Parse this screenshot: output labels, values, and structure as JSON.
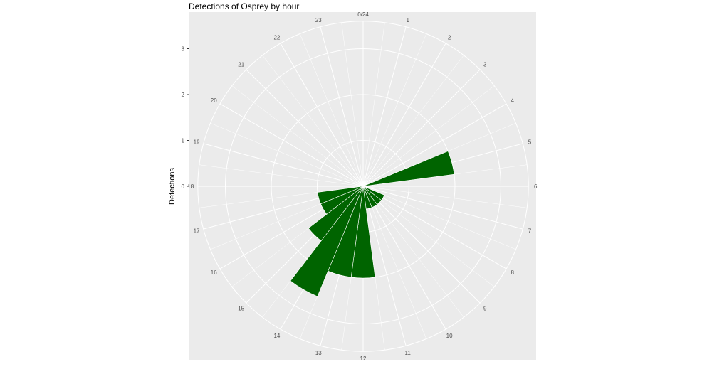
{
  "chart_data": {
    "type": "bar",
    "coord": "polar",
    "title": "Detections of Osprey by hour",
    "xlabel": "",
    "ylabel": "Detections",
    "x_tick_labels": [
      "0/24",
      "1",
      "2",
      "3",
      "4",
      "5",
      "6",
      "7",
      "8",
      "9",
      "10",
      "11",
      "12",
      "13",
      "14",
      "15",
      "16",
      "17",
      "18",
      "19",
      "20",
      "21",
      "22",
      "23"
    ],
    "y_tick_labels": [
      "0",
      "1",
      "2",
      "3"
    ],
    "y_ticks": [
      0,
      1,
      2,
      3
    ],
    "ylim": [
      0,
      3.6
    ],
    "categories": [
      0,
      1,
      2,
      3,
      4,
      5,
      6,
      7,
      8,
      9,
      10,
      11,
      12,
      13,
      14,
      15,
      16,
      17,
      18,
      19,
      20,
      21,
      22,
      23
    ],
    "values": [
      0,
      0,
      0,
      0,
      0,
      2,
      0,
      0,
      0.5,
      0.5,
      0.5,
      0.5,
      2,
      2,
      2.6,
      1.5,
      1,
      1,
      0,
      0,
      0,
      0,
      0,
      0
    ],
    "colors": {
      "bar": "#006400",
      "panel": "#ebebeb",
      "grid": "#ffffff"
    },
    "grid": true,
    "legend": "none"
  }
}
